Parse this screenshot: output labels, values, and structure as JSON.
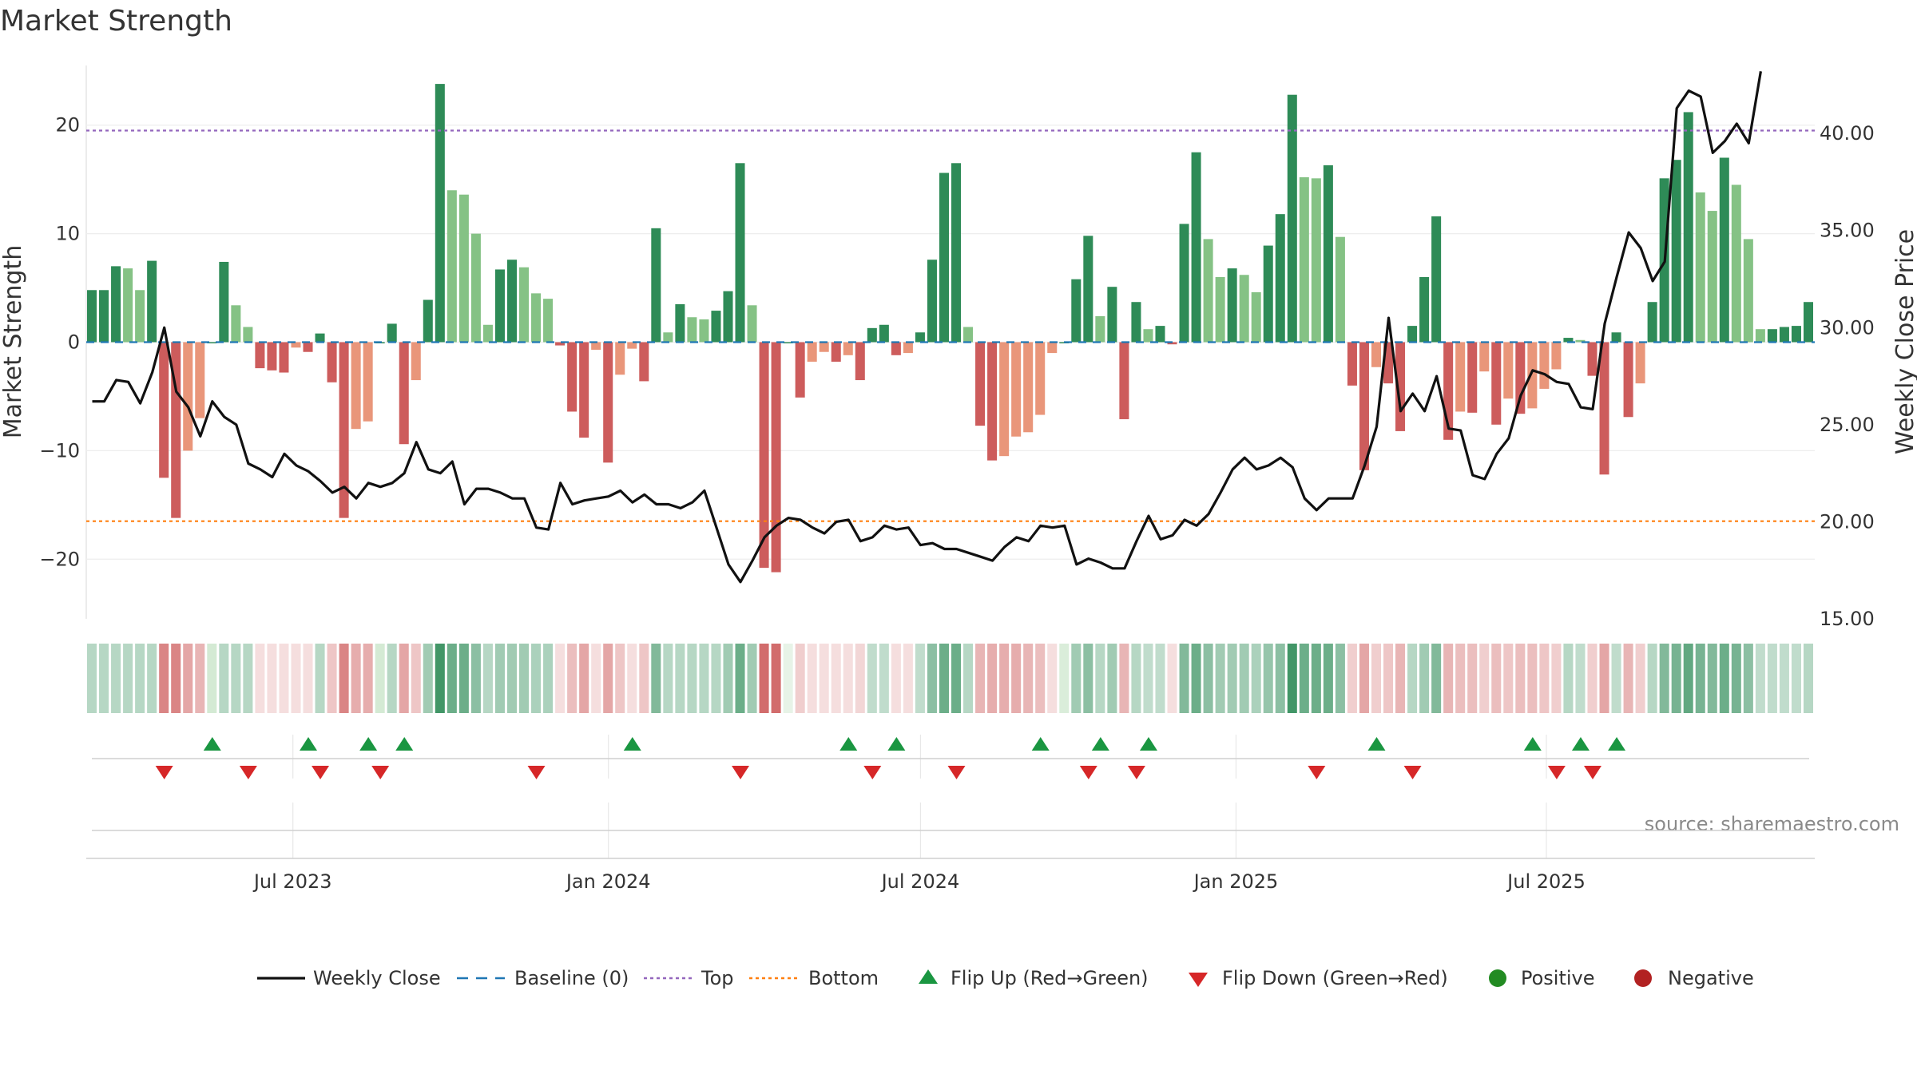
{
  "title": "Market Strength",
  "source": "source: sharemaestro.com",
  "colors": {
    "pos_strong": "#2e8b57",
    "pos_weak": "#85c285",
    "neg_strong": "#cd5c5c",
    "neg_weak": "#e9967a",
    "price": "#111111",
    "baseline": "#1f77b4",
    "top": "#9467bd",
    "bottom": "#ff7f0e",
    "flip_up": "#1a9641",
    "flip_down": "#d62728",
    "positive": "#228b22",
    "negative": "#b22222"
  },
  "chart_data": {
    "type": "bar",
    "x_start": "2023-03-06",
    "x_step_days": 7,
    "xlabel": "",
    "ylabel_left": "Market Strength",
    "ylabel_right": "Weekly Close Price",
    "ylim_left": [
      -25.5,
      25.5
    ],
    "ylim_right": [
      15,
      43.5
    ],
    "yticks_left": [
      {
        "v": 20,
        "label": "20"
      },
      {
        "v": 10,
        "label": "10"
      },
      {
        "v": 0,
        "label": "0"
      },
      {
        "v": -10,
        "label": "−10"
      },
      {
        "v": -20,
        "label": "−20"
      }
    ],
    "yticks_right": [
      {
        "v": 40,
        "label": "40.00"
      },
      {
        "v": 35,
        "label": "35.00"
      },
      {
        "v": 30,
        "label": "30.00"
      },
      {
        "v": 25,
        "label": "25.00"
      },
      {
        "v": 20,
        "label": "20.00"
      },
      {
        "v": 15,
        "label": "15.00"
      }
    ],
    "xticks": [
      {
        "date": "2023-07-01",
        "label": "Jul 2023"
      },
      {
        "date": "2024-01-01",
        "label": "Jan 2024"
      },
      {
        "date": "2024-07-01",
        "label": "Jul 2024"
      },
      {
        "date": "2025-01-01",
        "label": "Jan 2025"
      },
      {
        "date": "2025-07-01",
        "label": "Jul 2025"
      }
    ],
    "top_level": 19.5,
    "bottom_level": -16.5,
    "strength": [
      4.8,
      4.8,
      7,
      6.8,
      4.8,
      7.5,
      -12.5,
      -16.2,
      -10,
      -7,
      0,
      7.4,
      3.4,
      1.4,
      -2.4,
      -2.6,
      -2.8,
      -0.5,
      -0.9,
      0.8,
      -3.7,
      -16.2,
      -8,
      -7.3,
      0,
      1.7,
      -9.4,
      -3.5,
      3.9,
      23.8,
      14,
      13.6,
      10,
      1.6,
      6.7,
      7.6,
      6.9,
      4.5,
      4,
      -0.3,
      -6.4,
      -8.8,
      -0.7,
      -11.1,
      -3,
      -0.6,
      -3.6,
      10.5,
      0.9,
      3.5,
      2.3,
      2.1,
      2.9,
      4.7,
      16.5,
      3.4,
      -20.8,
      -21.2,
      0,
      -5.1,
      -1.8,
      -0.9,
      -1.8,
      -1.2,
      -3.5,
      1.3,
      1.6,
      -1.2,
      -1,
      0.9,
      7.6,
      15.6,
      16.5,
      1.4,
      -7.7,
      -10.9,
      -10.5,
      -8.7,
      -8.3,
      -6.7,
      -1,
      0,
      5.8,
      9.8,
      2.4,
      5.1,
      -7.1,
      3.7,
      1.2,
      1.5,
      -0.2,
      10.9,
      17.5,
      9.5,
      6,
      6.8,
      6.2,
      4.6,
      8.9,
      11.8,
      22.8,
      15.2,
      15.1,
      16.3,
      9.7,
      -4,
      -11.8,
      -2.3,
      -3.8,
      -8.2,
      1.5,
      6,
      11.6,
      -9,
      -6.4,
      -6.5,
      -2.7,
      -7.6,
      -5.2,
      -6.6,
      -6.1,
      -4.3,
      -2.5,
      0.4,
      0.2,
      -3.1,
      -12.2,
      0.9,
      -6.9,
      -3.8,
      3.7,
      15.1,
      16.8,
      21.2,
      13.8,
      12.1,
      17,
      14.5,
      9.5,
      1.2,
      1.2,
      1.4,
      1.5,
      3.7
    ],
    "price": [
      26.2,
      26.2,
      27.3,
      27.2,
      26.1,
      27.7,
      30,
      26.7,
      25.9,
      24.4,
      26.2,
      25.4,
      25,
      23,
      22.7,
      22.3,
      23.5,
      22.9,
      22.6,
      22.1,
      21.5,
      21.8,
      21.2,
      22,
      21.8,
      22,
      22.5,
      24.1,
      22.7,
      22.5,
      23.1,
      20.9,
      21.7,
      21.7,
      21.5,
      21.2,
      21.2,
      19.7,
      19.6,
      22,
      20.9,
      21.1,
      21.2,
      21.3,
      21.6,
      21,
      21.4,
      20.9,
      20.9,
      20.7,
      21,
      21.6,
      19.7,
      17.8,
      16.9,
      18,
      19.2,
      19.8,
      20.2,
      20.1,
      19.7,
      19.4,
      20,
      20.1,
      19,
      19.2,
      19.8,
      19.6,
      19.7,
      18.8,
      18.9,
      18.6,
      18.6,
      18.4,
      18.2,
      18,
      18.7,
      19.2,
      19,
      19.8,
      19.7,
      19.8,
      17.8,
      18.1,
      17.9,
      17.6,
      17.6,
      19,
      20.3,
      19.1,
      19.3,
      20.1,
      19.8,
      20.4,
      21.5,
      22.7,
      23.3,
      22.7,
      22.9,
      23.3,
      22.8,
      21.2,
      20.6,
      21.2,
      21.2,
      21.2,
      22.9,
      24.9,
      30.5,
      25.7,
      26.6,
      25.7,
      27.5,
      24.8,
      24.7,
      22.4,
      22.2,
      23.5,
      24.3,
      26.5,
      27.8,
      27.6,
      27.2,
      27.1,
      25.9,
      25.8,
      30.2,
      32.6,
      34.9,
      34.1,
      32.4,
      33.4,
      41.3,
      42.2,
      41.9,
      39,
      39.6,
      40.5,
      39.5,
      43.2
    ],
    "regime_alpha": [
      0.35,
      0.35,
      0.35,
      0.35,
      0.35,
      0.35,
      0.75,
      0.75,
      0.55,
      0.45,
      0.35,
      0.35,
      0.35,
      0.35,
      0.2,
      0.2,
      0.2,
      0.2,
      0.2,
      0.35,
      0.35,
      0.75,
      0.5,
      0.5,
      0.35,
      0.35,
      0.55,
      0.35,
      0.45,
      0.9,
      0.7,
      0.7,
      0.55,
      0.35,
      0.45,
      0.45,
      0.45,
      0.4,
      0.4,
      0.2,
      0.4,
      0.55,
      0.2,
      0.55,
      0.35,
      0.2,
      0.35,
      0.6,
      0.35,
      0.35,
      0.35,
      0.35,
      0.35,
      0.45,
      0.7,
      0.45,
      0.9,
      0.9,
      0.2,
      0.3,
      0.2,
      0.2,
      0.2,
      0.2,
      0.25,
      0.3,
      0.3,
      0.2,
      0.2,
      0.3,
      0.55,
      0.7,
      0.7,
      0.35,
      0.45,
      0.5,
      0.5,
      0.5,
      0.45,
      0.4,
      0.2,
      0.3,
      0.45,
      0.55,
      0.35,
      0.45,
      0.45,
      0.35,
      0.3,
      0.3,
      0.2,
      0.6,
      0.7,
      0.55,
      0.45,
      0.45,
      0.45,
      0.4,
      0.5,
      0.55,
      0.9,
      0.7,
      0.7,
      0.7,
      0.55,
      0.3,
      0.55,
      0.3,
      0.35,
      0.45,
      0.35,
      0.45,
      0.6,
      0.45,
      0.4,
      0.4,
      0.3,
      0.4,
      0.35,
      0.4,
      0.4,
      0.35,
      0.3,
      0.35,
      0.3,
      0.3,
      0.55,
      0.3,
      0.45,
      0.3,
      0.35,
      0.6,
      0.65,
      0.75,
      0.65,
      0.6,
      0.7,
      0.65,
      0.55,
      0.3,
      0.3,
      0.3,
      0.3,
      0.35
    ],
    "flip_up_idx": [
      10,
      18,
      23,
      26,
      45,
      63,
      67,
      79,
      84,
      88,
      107,
      120,
      124,
      127
    ],
    "flip_down_idx": [
      6,
      13,
      19,
      24,
      37,
      54,
      65,
      72,
      83,
      87,
      102,
      110,
      122,
      125
    ],
    "legend": [
      {
        "key": "weekly_close",
        "label": "Weekly Close"
      },
      {
        "key": "baseline",
        "label": "Baseline (0)"
      },
      {
        "key": "top",
        "label": "Top"
      },
      {
        "key": "bottom",
        "label": "Bottom"
      },
      {
        "key": "flip_up",
        "label": "Flip Up (Red→Green)"
      },
      {
        "key": "flip_down",
        "label": "Flip Down (Green→Red)"
      },
      {
        "key": "positive",
        "label": "Positive"
      },
      {
        "key": "negative",
        "label": "Negative"
      }
    ]
  }
}
